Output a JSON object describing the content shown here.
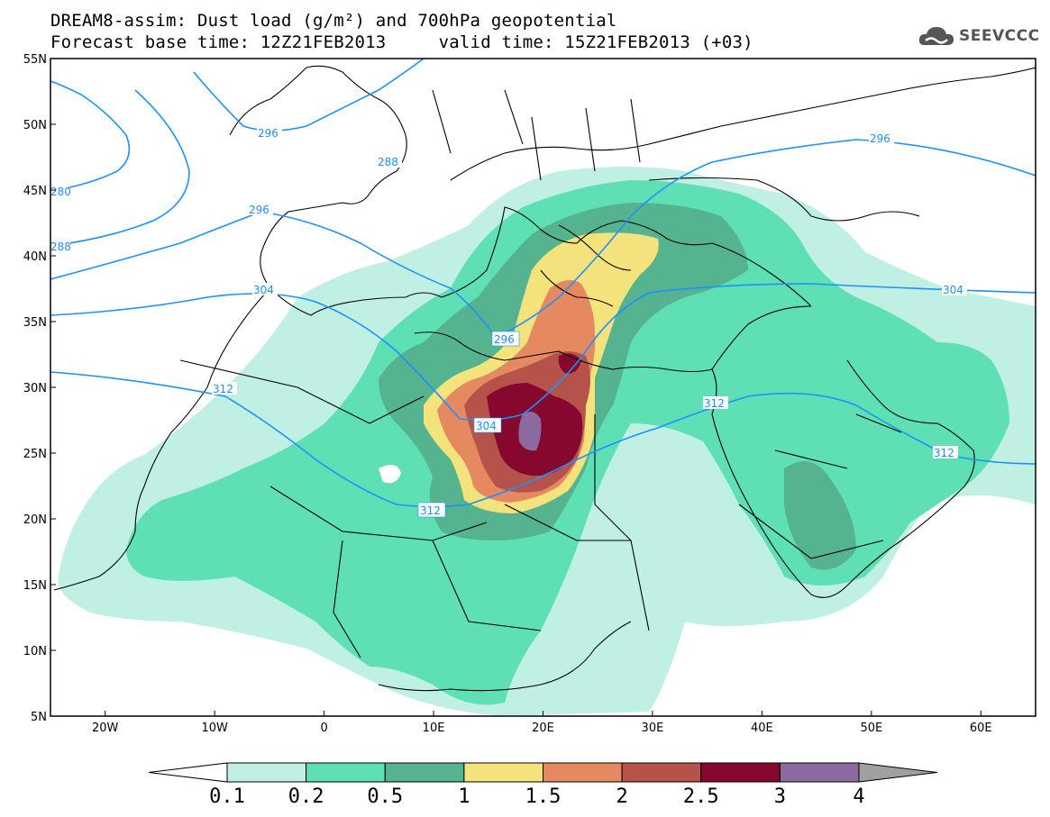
{
  "title": {
    "line1": "DREAM8-assim: Dust load (g/m²) and 700hPa geopotential",
    "line2": "Forecast base time: 12Z21FEB2013     valid time: 15Z21FEB2013 (+03)"
  },
  "logo": {
    "text": "SEEVCCC",
    "icon": "cloud-logo-icon"
  },
  "map": {
    "lon_range": [
      -25,
      65
    ],
    "lat_range": [
      5,
      55
    ],
    "lat_labels": [
      "55N",
      "50N",
      "45N",
      "40N",
      "35N",
      "30N",
      "25N",
      "20N",
      "15N",
      "10N",
      "5N"
    ],
    "lon_labels": [
      "20W",
      "10W",
      "0",
      "10E",
      "20E",
      "30E",
      "40E",
      "50E",
      "60E"
    ],
    "contour_labels": [
      "296",
      "288",
      "280",
      "288",
      "296",
      "304",
      "312",
      "296",
      "304",
      "312",
      "296",
      "304",
      "312",
      "312"
    ]
  },
  "colorbar": {
    "labels": [
      "0.1",
      "0.2",
      "0.5",
      "1",
      "1.5",
      "2",
      "2.5",
      "3",
      "4"
    ],
    "colors": [
      "#ffffff",
      "#bff0e3",
      "#5ee0b4",
      "#55b48f",
      "#f4e27c",
      "#e58a60",
      "#b5534a",
      "#86082f",
      "#8b6b9f",
      "#a0a0a0"
    ]
  }
}
